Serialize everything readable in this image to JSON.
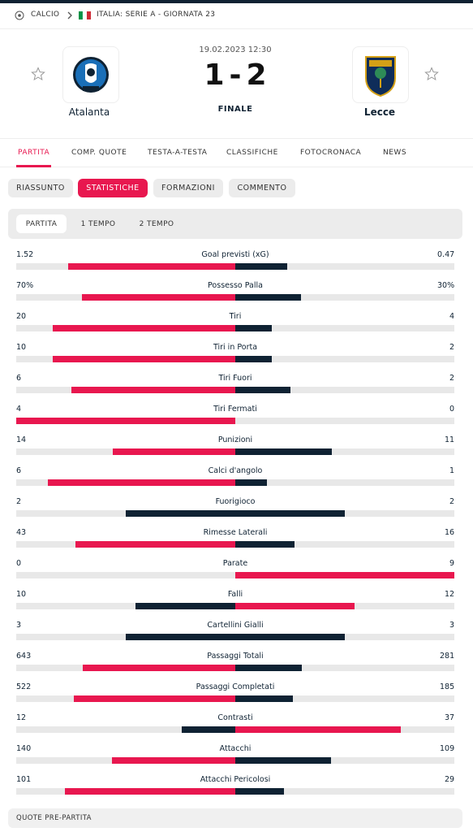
{
  "breadcrumb": {
    "sport": "CALCIO",
    "competition": "ITALIA: SERIE A - GIORNATA 23"
  },
  "match": {
    "datetime": "19.02.2023 12:30",
    "home_team": "Atalanta",
    "away_team": "Lecce",
    "home_score": 1,
    "score_separator": "-",
    "away_score": 2,
    "status": "FINALE"
  },
  "nav_tabs": [
    "PARTITA",
    "COMP. QUOTE",
    "TESTA-A-TESTA",
    "CLASSIFICHE",
    "FOTOCRONACA",
    "NEWS"
  ],
  "active_nav_tab": 0,
  "sub_tabs": [
    "RIASSUNTO",
    "STATISTICHE",
    "FORMAZIONI",
    "COMMENTO"
  ],
  "active_sub_tab": 1,
  "period_tabs": [
    "PARTITA",
    "1 TEMPO",
    "2 TEMPO"
  ],
  "active_period_tab": 0,
  "stats": [
    {
      "label": "Goal previsti (xG)",
      "home": 1.52,
      "away": 0.47
    },
    {
      "label": "Possesso Palla",
      "home": 70,
      "away": 30,
      "home_label": "70%",
      "away_label": "30%"
    },
    {
      "label": "Tiri",
      "home": 20,
      "away": 4
    },
    {
      "label": "Tiri in Porta",
      "home": 10,
      "away": 2
    },
    {
      "label": "Tiri Fuori",
      "home": 6,
      "away": 2
    },
    {
      "label": "Tiri Fermati",
      "home": 4,
      "away": 0
    },
    {
      "label": "Punizioni",
      "home": 14,
      "away": 11
    },
    {
      "label": "Calci d'angolo",
      "home": 6,
      "away": 1
    },
    {
      "label": "Fuorigioco",
      "home": 2,
      "away": 2
    },
    {
      "label": "Rimesse Laterali",
      "home": 43,
      "away": 16
    },
    {
      "label": "Parate",
      "home": 0,
      "away": 9
    },
    {
      "label": "Falli",
      "home": 10,
      "away": 12
    },
    {
      "label": "Cartellini Gialli",
      "home": 3,
      "away": 3
    },
    {
      "label": "Passaggi Totali",
      "home": 643,
      "away": 281
    },
    {
      "label": "Passaggi Completati",
      "home": 522,
      "away": 185
    },
    {
      "label": "Contrasti",
      "home": 12,
      "away": 37
    },
    {
      "label": "Attacchi",
      "home": 140,
      "away": 109
    },
    {
      "label": "Attacchi Pericolosi",
      "home": 101,
      "away": 29
    }
  ],
  "footer": {
    "title": "QUOTE PRE-PARTITA"
  }
}
